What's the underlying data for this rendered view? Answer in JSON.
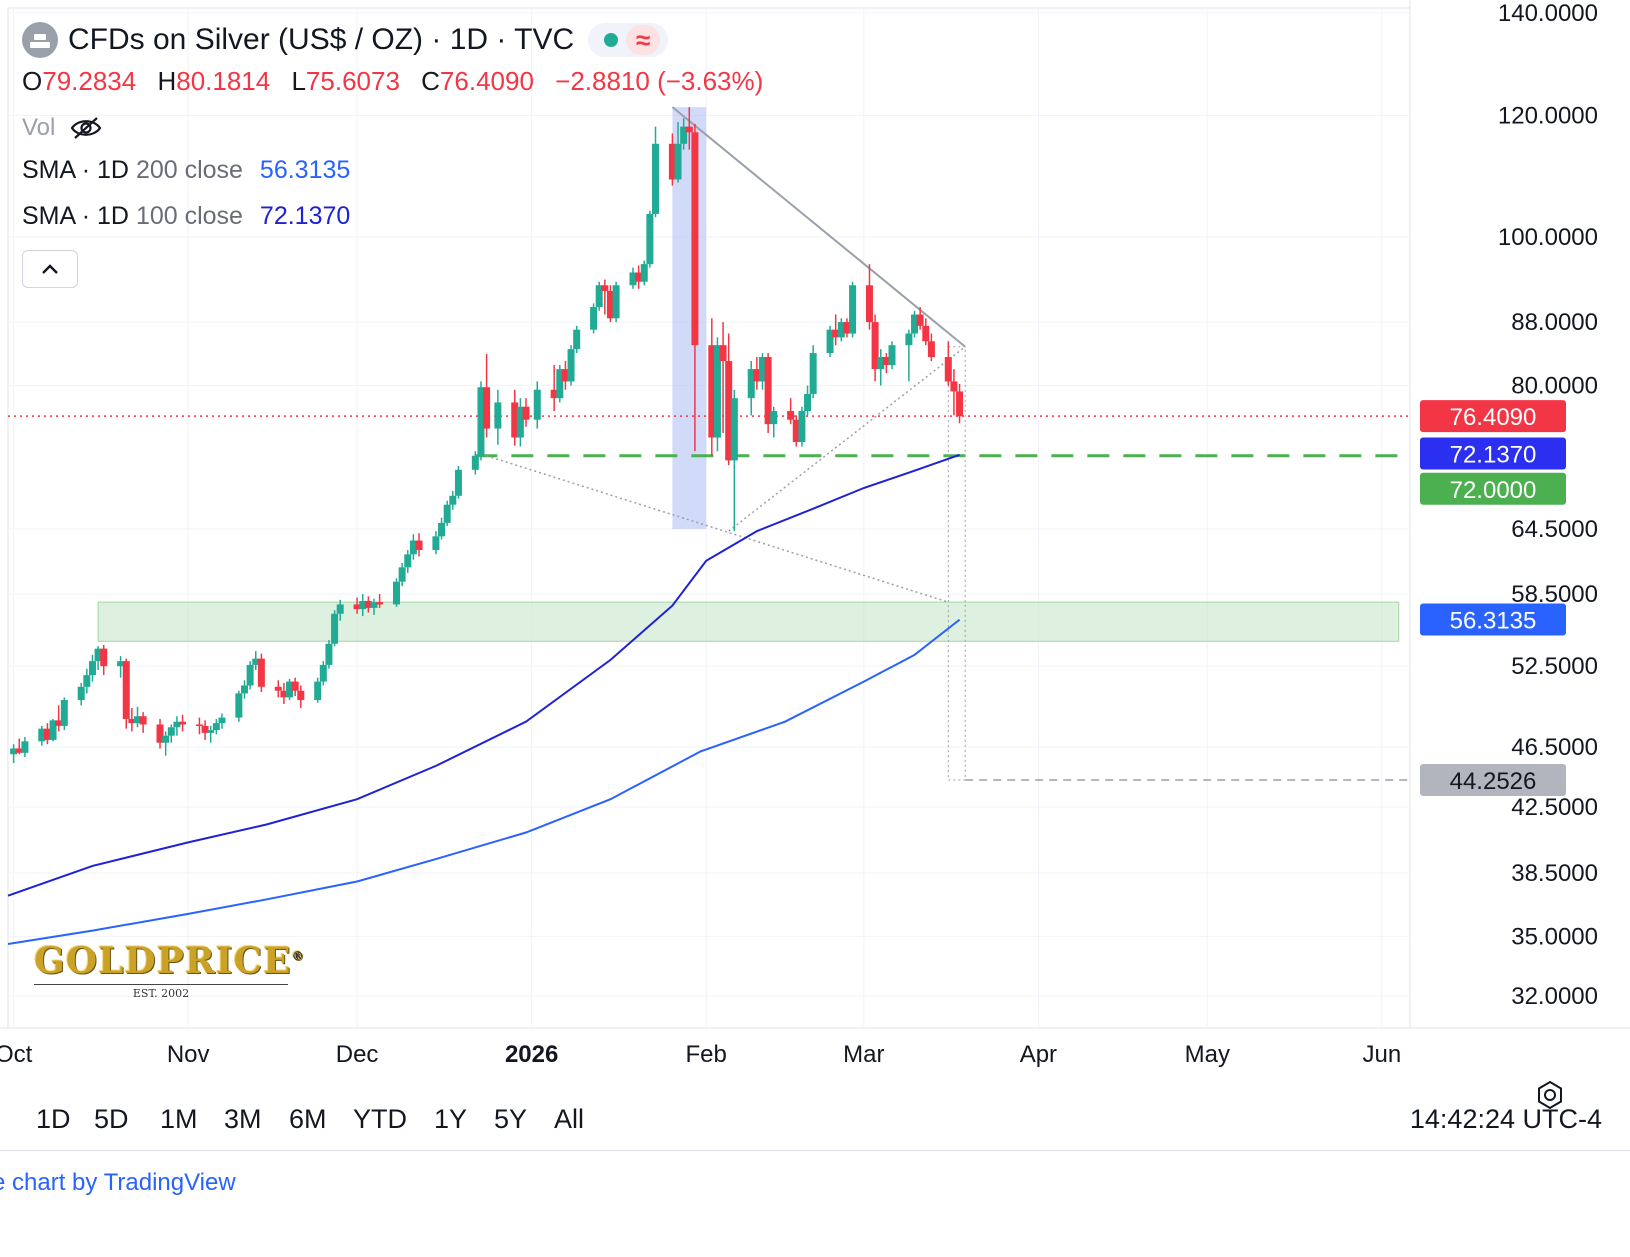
{
  "header": {
    "title": "CFDs on Silver (US$ / OZ) · 1D · TVC",
    "ohlc": {
      "o_label": "O",
      "o": "79.2834",
      "h_label": "H",
      "h": "80.1814",
      "l_label": "L",
      "l": "75.6073",
      "c_label": "C",
      "c": "76.4090",
      "change": "−2.8810 (−3.63%)"
    },
    "vol_label": "Vol",
    "sma200": {
      "label": "SMA · 1D",
      "params": "200 close",
      "value": "56.3135"
    },
    "sma100": {
      "label": "SMA · 1D",
      "params": "100 close",
      "value": "72.1370"
    }
  },
  "toolbar": {
    "ranges": [
      "1D",
      "5D",
      "1M",
      "3M",
      "6M",
      "YTD",
      "1Y",
      "5Y",
      "All"
    ],
    "clock": "14:42:24 UTC-4"
  },
  "footer": {
    "credit": "e chart by TradingView"
  },
  "logo": {
    "name": "GOLDPRICE",
    "est": "EST. 2002"
  },
  "colors": {
    "up": "#22ab94",
    "down": "#f23645",
    "sma100": "#1e22d4",
    "sma200": "#2962ff",
    "support": "#4caf50",
    "zone": "#c8e6c9",
    "highlight": "#b3c2f5"
  },
  "chart_data": {
    "type": "candlestick",
    "title": "CFDs on Silver (US$ / OZ) · 1D · TVC",
    "y_scale": "log",
    "ylim": [
      30.5,
      141
    ],
    "y_ticks": [
      "140.0000",
      "120.0000",
      "100.0000",
      "88.0000",
      "80.0000",
      "64.5000",
      "58.5000",
      "52.5000",
      "46.5000",
      "42.5000",
      "38.5000",
      "35.0000",
      "32.0000"
    ],
    "x_ticks": [
      "Oct",
      "Nov",
      "Dec",
      "2026",
      "Feb",
      "Mar",
      "Apr",
      "May",
      "Jun"
    ],
    "x_range": [
      "2025-09-30",
      "2026-06-06"
    ],
    "price_labels": [
      {
        "text": "76.4090",
        "value": 76.409,
        "color": "#f23645"
      },
      {
        "text": "72.1370",
        "value": 72.137,
        "color": "#2a2ff0"
      },
      {
        "text": "72.0000",
        "value": 72.0,
        "color": "#4caf50"
      },
      {
        "text": "56.3135",
        "value": 56.3135,
        "color": "#2962ff"
      },
      {
        "text": "44.2526",
        "value": 44.2526,
        "color": "#787b86"
      }
    ],
    "current_price": 76.409,
    "support_level": 72.0,
    "target_level": 44.2526,
    "support_zone": {
      "from": 54.5,
      "to": 57.8,
      "start": "2025-10-16",
      "end": "2026-06-04"
    },
    "highlight_period": {
      "start": "2026-01-26",
      "end": "2026-02-01",
      "low": 64.5,
      "high": 121.5
    },
    "trendlines": [
      {
        "style": "solid",
        "from": [
          "2026-01-26",
          121.5
        ],
        "to": [
          "2026-03-19",
          84.8
        ]
      },
      {
        "style": "dotted",
        "from": [
          "2025-12-24",
          72.0
        ],
        "to": [
          "2026-03-16",
          57.8
        ]
      },
      {
        "style": "dotted",
        "from": [
          "2026-02-05",
          64.3
        ],
        "to": [
          "2026-03-19",
          84.8
        ]
      }
    ],
    "projection": {
      "x_start": "2026-03-16",
      "x_end": "2026-03-19",
      "top": 84.8,
      "bottom": 44.2526
    },
    "candles": [
      [
        "2025-10-01",
        46.0,
        46.7,
        45.4,
        46.4
      ],
      [
        "2025-10-02",
        46.4,
        47.1,
        46.0,
        46.1
      ],
      [
        "2025-10-03",
        46.1,
        47.2,
        45.8,
        46.9
      ],
      [
        "2025-10-06",
        46.9,
        48.0,
        46.6,
        47.8
      ],
      [
        "2025-10-07",
        47.8,
        48.2,
        46.7,
        47.0
      ],
      [
        "2025-10-08",
        47.0,
        48.5,
        46.9,
        48.4
      ],
      [
        "2025-10-09",
        48.4,
        49.5,
        47.6,
        48.0
      ],
      [
        "2025-10-10",
        48.0,
        50.1,
        47.7,
        49.9
      ],
      [
        "2025-10-13",
        49.9,
        51.2,
        49.5,
        50.9
      ],
      [
        "2025-10-14",
        50.9,
        52.3,
        50.4,
        51.8
      ],
      [
        "2025-10-15",
        51.8,
        53.4,
        51.3,
        52.9
      ],
      [
        "2025-10-16",
        52.9,
        54.1,
        52.2,
        53.9
      ],
      [
        "2025-10-17",
        53.9,
        54.2,
        51.8,
        52.5
      ],
      [
        "2025-10-20",
        52.5,
        53.3,
        51.6,
        52.9
      ],
      [
        "2025-10-21",
        52.9,
        53.1,
        47.8,
        48.5
      ],
      [
        "2025-10-22",
        48.5,
        49.3,
        47.6,
        48.2
      ],
      [
        "2025-10-23",
        48.2,
        49.4,
        47.9,
        48.7
      ],
      [
        "2025-10-24",
        48.7,
        49.0,
        47.5,
        48.1
      ],
      [
        "2025-10-27",
        48.1,
        48.5,
        46.4,
        46.8
      ],
      [
        "2025-10-28",
        46.8,
        47.6,
        45.9,
        47.3
      ],
      [
        "2025-10-29",
        47.3,
        48.1,
        46.8,
        47.9
      ],
      [
        "2025-10-30",
        47.9,
        48.7,
        47.3,
        48.3
      ],
      [
        "2025-10-31",
        48.3,
        48.8,
        47.6,
        48.1
      ],
      [
        "2025-11-03",
        48.1,
        48.6,
        47.4,
        48.0
      ],
      [
        "2025-11-04",
        48.0,
        48.4,
        47.0,
        47.5
      ],
      [
        "2025-11-05",
        47.5,
        48.0,
        46.8,
        47.7
      ],
      [
        "2025-11-06",
        47.7,
        48.5,
        47.4,
        48.2
      ],
      [
        "2025-11-07",
        48.2,
        48.9,
        47.8,
        48.6
      ],
      [
        "2025-11-10",
        48.6,
        50.6,
        48.3,
        50.4
      ],
      [
        "2025-11-11",
        50.4,
        51.4,
        50.0,
        51.0
      ],
      [
        "2025-11-12",
        51.0,
        52.9,
        50.7,
        52.6
      ],
      [
        "2025-11-13",
        52.6,
        53.7,
        52.2,
        53.1
      ],
      [
        "2025-11-14",
        53.1,
        53.5,
        50.5,
        50.9
      ],
      [
        "2025-11-17",
        50.9,
        51.4,
        50.1,
        50.6
      ],
      [
        "2025-11-18",
        50.6,
        51.2,
        49.6,
        50.1
      ],
      [
        "2025-11-19",
        50.1,
        51.5,
        49.9,
        51.3
      ],
      [
        "2025-11-20",
        51.3,
        51.6,
        50.2,
        50.6
      ],
      [
        "2025-11-21",
        50.6,
        51.0,
        49.3,
        49.9
      ],
      [
        "2025-11-24",
        49.9,
        51.6,
        49.7,
        51.3
      ],
      [
        "2025-11-25",
        51.3,
        52.9,
        51.0,
        52.6
      ],
      [
        "2025-11-26",
        52.6,
        54.6,
        52.3,
        54.3
      ],
      [
        "2025-11-27",
        54.3,
        57.1,
        54.1,
        56.8
      ],
      [
        "2025-11-28",
        56.8,
        58.0,
        56.2,
        57.6
      ],
      [
        "2025-12-01",
        57.6,
        58.2,
        56.8,
        57.2
      ],
      [
        "2025-12-02",
        57.2,
        58.5,
        56.6,
        57.9
      ],
      [
        "2025-12-03",
        57.9,
        58.3,
        56.9,
        57.3
      ],
      [
        "2025-12-04",
        57.3,
        58.1,
        56.7,
        57.8
      ],
      [
        "2025-12-05",
        57.8,
        58.5,
        57.3,
        57.6
      ],
      [
        "2025-12-08",
        57.6,
        59.9,
        57.4,
        59.6
      ],
      [
        "2025-12-09",
        59.6,
        61.3,
        59.2,
        60.9
      ],
      [
        "2025-12-10",
        60.9,
        62.5,
        60.4,
        62.1
      ],
      [
        "2025-12-11",
        62.1,
        64.0,
        61.6,
        63.4
      ],
      [
        "2025-12-12",
        63.4,
        64.1,
        61.9,
        62.5
      ],
      [
        "2025-12-15",
        62.5,
        64.3,
        62.1,
        63.8
      ],
      [
        "2025-12-16",
        63.8,
        65.6,
        63.5,
        65.1
      ],
      [
        "2025-12-17",
        65.1,
        67.3,
        64.8,
        66.9
      ],
      [
        "2025-12-18",
        66.9,
        68.3,
        66.4,
        67.8
      ],
      [
        "2025-12-19",
        67.8,
        70.9,
        67.5,
        70.5
      ],
      [
        "2025-12-22",
        70.5,
        72.5,
        70.0,
        72.0
      ],
      [
        "2025-12-23",
        72.0,
        80.5,
        71.5,
        79.8
      ],
      [
        "2025-12-24",
        79.8,
        83.9,
        74.0,
        75.0
      ],
      [
        "2025-12-26",
        75.0,
        79.5,
        73.2,
        78.0
      ],
      [
        "2025-12-29",
        78.0,
        79.5,
        73.1,
        74.0
      ],
      [
        "2025-12-30",
        74.0,
        78.5,
        73.0,
        77.5
      ],
      [
        "2025-12-31",
        77.5,
        78.5,
        75.2,
        76.0
      ],
      [
        "2026-01-02",
        76.0,
        80.5,
        75.0,
        79.5
      ],
      [
        "2026-01-05",
        79.5,
        82.5,
        77.0,
        78.5
      ],
      [
        "2026-01-06",
        78.5,
        82.5,
        78.0,
        82.0
      ],
      [
        "2026-01-07",
        82.0,
        83.0,
        79.5,
        80.5
      ],
      [
        "2026-01-08",
        80.5,
        85.0,
        80.0,
        84.5
      ],
      [
        "2026-01-09",
        84.5,
        87.5,
        84.0,
        87.0
      ],
      [
        "2026-01-12",
        87.0,
        90.5,
        86.5,
        90.0
      ],
      [
        "2026-01-13",
        90.0,
        93.5,
        89.5,
        93.0
      ],
      [
        "2026-01-14",
        93.0,
        93.8,
        89.0,
        92.2
      ],
      [
        "2026-01-15",
        92.2,
        93.0,
        88.0,
        88.5
      ],
      [
        "2026-01-16",
        88.5,
        93.5,
        88.0,
        93.0
      ],
      [
        "2026-01-19",
        93.0,
        95.5,
        92.5,
        94.8
      ],
      [
        "2026-01-20",
        94.8,
        95.8,
        92.5,
        93.5
      ],
      [
        "2026-01-21",
        93.5,
        96.5,
        93.0,
        96.0
      ],
      [
        "2026-01-22",
        96.0,
        104.0,
        95.5,
        103.5
      ],
      [
        "2026-01-23",
        103.5,
        118.0,
        103.0,
        115.0
      ],
      [
        "2026-01-26",
        115.0,
        116.8,
        108.0,
        109.0
      ],
      [
        "2026-01-27",
        109.0,
        118.8,
        108.5,
        115.0
      ],
      [
        "2026-01-28",
        115.0,
        119.5,
        114.0,
        118.0
      ],
      [
        "2026-01-29",
        118.0,
        121.5,
        114.0,
        117.0
      ],
      [
        "2026-01-30",
        117.0,
        118.5,
        72.5,
        85.0
      ],
      [
        "2026-02-02",
        85.0,
        88.5,
        72.0,
        74.0
      ],
      [
        "2026-02-03",
        74.0,
        86.0,
        72.5,
        85.0
      ],
      [
        "2026-02-04",
        85.0,
        88.0,
        74.5,
        83.0
      ],
      [
        "2026-02-05",
        83.0,
        86.5,
        71.0,
        71.5
      ],
      [
        "2026-02-06",
        71.5,
        79.5,
        64.3,
        78.5
      ],
      [
        "2026-02-09",
        78.5,
        83.0,
        76.5,
        82.0
      ],
      [
        "2026-02-10",
        82.0,
        83.5,
        79.5,
        80.5
      ],
      [
        "2026-02-11",
        80.5,
        84.0,
        79.5,
        83.5
      ],
      [
        "2026-02-12",
        83.5,
        84.0,
        74.5,
        75.5
      ],
      [
        "2026-02-13",
        75.5,
        77.5,
        74.0,
        77.0
      ],
      [
        "2026-02-16",
        77.0,
        78.5,
        75.5,
        76.0
      ],
      [
        "2026-02-17",
        76.0,
        76.5,
        73.0,
        73.5
      ],
      [
        "2026-02-18",
        73.5,
        77.5,
        73.0,
        77.0
      ],
      [
        "2026-02-19",
        77.0,
        80.0,
        76.5,
        79.0
      ],
      [
        "2026-02-20",
        79.0,
        85.0,
        78.5,
        84.0
      ],
      [
        "2026-02-23",
        84.0,
        87.5,
        83.5,
        87.0
      ],
      [
        "2026-02-24",
        87.0,
        89.0,
        85.0,
        86.0
      ],
      [
        "2026-02-25",
        86.0,
        88.5,
        85.5,
        88.0
      ],
      [
        "2026-02-26",
        88.0,
        88.5,
        86.0,
        86.5
      ],
      [
        "2026-02-27",
        86.5,
        93.5,
        86.0,
        93.0
      ],
      [
        "2026-03-02",
        93.0,
        96.0,
        87.0,
        88.0
      ],
      [
        "2026-03-03",
        88.0,
        89.0,
        80.5,
        82.0
      ],
      [
        "2026-03-04",
        82.0,
        84.5,
        80.0,
        83.5
      ],
      [
        "2026-03-05",
        83.5,
        84.0,
        81.5,
        82.5
      ],
      [
        "2026-03-06",
        82.5,
        85.5,
        82.0,
        85.0
      ],
      [
        "2026-03-09",
        85.0,
        87.0,
        80.5,
        86.5
      ],
      [
        "2026-03-10",
        86.5,
        89.5,
        86.0,
        89.0
      ],
      [
        "2026-03-11",
        89.0,
        90.0,
        87.0,
        87.5
      ],
      [
        "2026-03-12",
        87.5,
        88.5,
        85.0,
        85.5
      ],
      [
        "2026-03-13",
        85.5,
        86.5,
        83.0,
        83.5
      ],
      [
        "2026-03-16",
        83.5,
        85.5,
        80.0,
        80.5
      ],
      [
        "2026-03-17",
        80.5,
        82.0,
        76.5,
        79.3
      ],
      [
        "2026-03-18",
        79.3,
        80.2,
        75.6,
        76.4
      ]
    ],
    "sma100": [
      [
        "2025-09-30",
        37.2
      ],
      [
        "2025-10-15",
        38.9
      ],
      [
        "2025-11-01",
        40.3
      ],
      [
        "2025-11-15",
        41.4
      ],
      [
        "2025-12-01",
        43.0
      ],
      [
        "2025-12-15",
        45.2
      ],
      [
        "2025-12-31",
        48.3
      ],
      [
        "2026-01-15",
        53.0
      ],
      [
        "2026-01-26",
        57.5
      ],
      [
        "2026-02-01",
        61.5
      ],
      [
        "2026-02-10",
        64.3
      ],
      [
        "2026-02-20",
        66.5
      ],
      [
        "2026-03-01",
        68.6
      ],
      [
        "2026-03-10",
        70.4
      ],
      [
        "2026-03-18",
        72.1
      ]
    ],
    "sma200": [
      [
        "2025-09-30",
        34.6
      ],
      [
        "2025-10-15",
        35.3
      ],
      [
        "2025-11-01",
        36.2
      ],
      [
        "2025-11-15",
        37.0
      ],
      [
        "2025-12-01",
        38.0
      ],
      [
        "2025-12-15",
        39.3
      ],
      [
        "2025-12-31",
        40.9
      ],
      [
        "2026-01-15",
        43.0
      ],
      [
        "2026-01-31",
        46.2
      ],
      [
        "2026-02-15",
        48.3
      ],
      [
        "2026-03-01",
        51.3
      ],
      [
        "2026-03-10",
        53.4
      ],
      [
        "2026-03-18",
        56.3
      ]
    ]
  }
}
